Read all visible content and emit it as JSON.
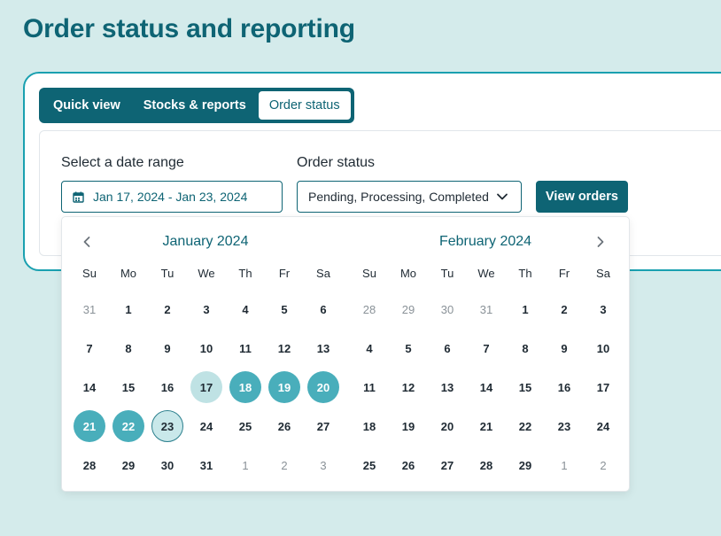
{
  "page": {
    "title": "Order status and reporting"
  },
  "tabs": [
    {
      "label": "Quick view",
      "active": false
    },
    {
      "label": "Stocks & reports",
      "active": false
    },
    {
      "label": "Order status",
      "active": true
    }
  ],
  "filters": {
    "date_label": "Select a date range",
    "date_value": "Jan 17, 2024 - Jan 23, 2024",
    "status_label": "Order status",
    "status_value": "Pending, Processing, Completed",
    "view_button": "View orders"
  },
  "colors": {
    "brand": "#0e6474",
    "accent": "#49aebb",
    "range_start": "#bfe2e4",
    "background": "#d4ebeb"
  },
  "icons": {
    "date_input": "calendar-icon",
    "status_select": "chevron-down-icon",
    "prev": "chevron-left-icon",
    "next": "chevron-right-icon"
  },
  "datepicker": {
    "weekdays": [
      "Su",
      "Mo",
      "Tu",
      "We",
      "Th",
      "Fr",
      "Sa"
    ],
    "months": [
      {
        "title": "January 2024",
        "days": [
          [
            "31",
            "1",
            "2",
            "3",
            "4",
            "5",
            "6"
          ],
          [
            "7",
            "8",
            "9",
            "10",
            "11",
            "12",
            "13"
          ],
          [
            "14",
            "15",
            "16",
            "17",
            "18",
            "19",
            "20"
          ],
          [
            "21",
            "22",
            "23",
            "24",
            "25",
            "26",
            "27"
          ],
          [
            "28",
            "29",
            "30",
            "31",
            "1",
            "2",
            "3"
          ]
        ],
        "out_of_month": [
          "0-0",
          "4-4",
          "4-5",
          "4-6"
        ],
        "range_start": "2-3",
        "range_mid": [
          "2-4",
          "2-5",
          "2-6",
          "3-0",
          "3-1"
        ],
        "range_end": "3-2"
      },
      {
        "title": "February 2024",
        "days": [
          [
            "28",
            "29",
            "30",
            "31",
            "1",
            "2",
            "3"
          ],
          [
            "4",
            "5",
            "6",
            "7",
            "8",
            "9",
            "10"
          ],
          [
            "11",
            "12",
            "13",
            "14",
            "15",
            "16",
            "17"
          ],
          [
            "18",
            "19",
            "20",
            "21",
            "22",
            "23",
            "24"
          ],
          [
            "25",
            "26",
            "27",
            "28",
            "29",
            "1",
            "2"
          ]
        ],
        "out_of_month": [
          "0-0",
          "0-1",
          "0-2",
          "0-3",
          "4-5",
          "4-6"
        ],
        "range_start": null,
        "range_mid": [],
        "range_end": null
      }
    ]
  }
}
